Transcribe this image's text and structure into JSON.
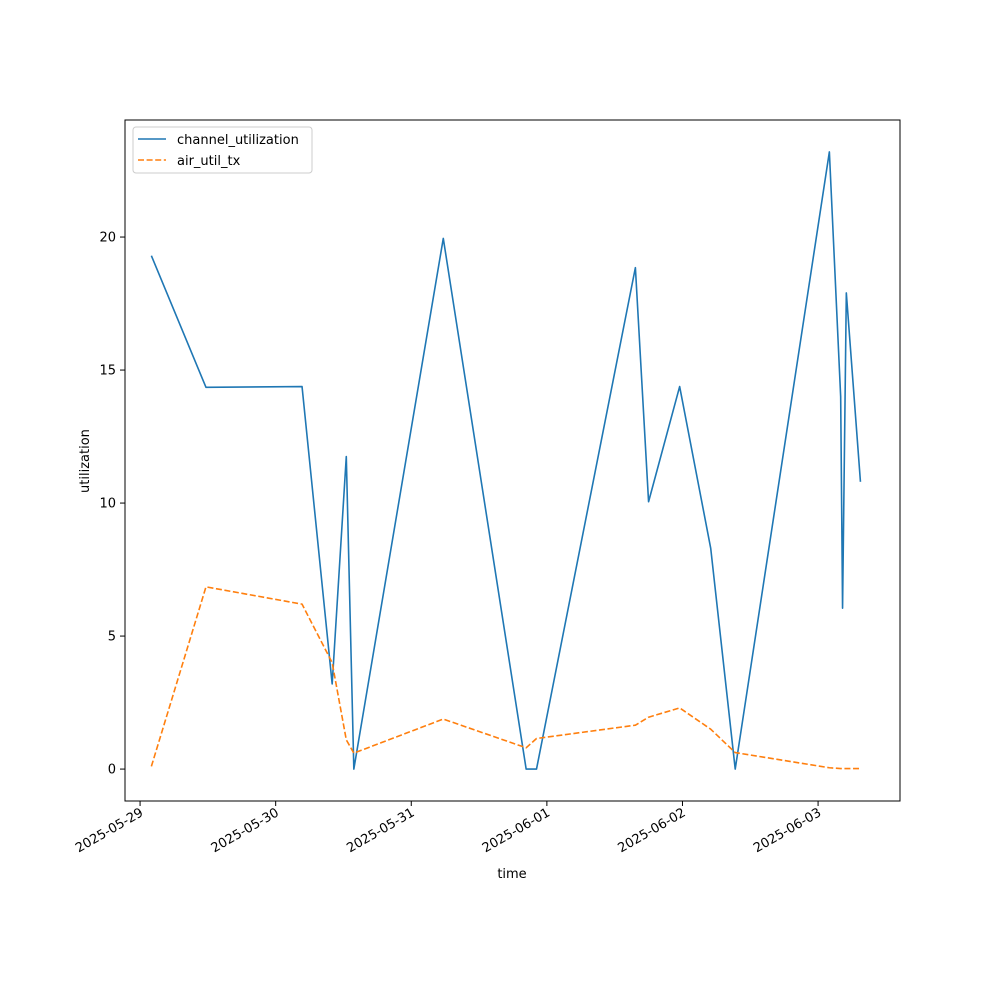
{
  "chart_data": {
    "type": "line",
    "title": "",
    "xlabel": "time",
    "ylabel": "utilization",
    "x_ticks": [
      "2025-05-29",
      "2025-05-30",
      "2025-05-31",
      "2025-06-01",
      "2025-06-02",
      "2025-06-03"
    ],
    "y_ticks": [
      0,
      5,
      10,
      15,
      20
    ],
    "xlim": [
      "2025-05-28T21:20",
      "2025-06-03T14:30"
    ],
    "ylim": [
      -1.2,
      24.4
    ],
    "grid": false,
    "legend": "top-left",
    "series": [
      {
        "name": "channel_utilization",
        "color": "#1f77b4",
        "linestyle": "solid",
        "points": [
          [
            "2025-05-29T02:00",
            19.3
          ],
          [
            "2025-05-29T11:40",
            14.35
          ],
          [
            "2025-05-30T04:40",
            14.38
          ],
          [
            "2025-05-30T10:00",
            3.2
          ],
          [
            "2025-05-30T12:30",
            11.75
          ],
          [
            "2025-05-30T13:50",
            0.0
          ],
          [
            "2025-05-31T05:40",
            19.95
          ],
          [
            "2025-05-31T20:20",
            0.0
          ],
          [
            "2025-05-31T22:10",
            0.0
          ],
          [
            "2025-06-01T15:40",
            18.85
          ],
          [
            "2025-06-01T18:00",
            10.05
          ],
          [
            "2025-06-01T23:30",
            14.38
          ],
          [
            "2025-06-02T05:00",
            8.3
          ],
          [
            "2025-06-02T09:20",
            0.0
          ],
          [
            "2025-06-03T02:00",
            23.2
          ],
          [
            "2025-06-03T04:00",
            14.0
          ],
          [
            "2025-06-03T04:20",
            6.05
          ],
          [
            "2025-06-03T05:00",
            17.9
          ],
          [
            "2025-06-03T07:30",
            10.8
          ]
        ]
      },
      {
        "name": "air_util_tx",
        "color": "#ff7f0e",
        "linestyle": "dashed",
        "points": [
          [
            "2025-05-29T02:00",
            0.1
          ],
          [
            "2025-05-29T11:40",
            6.85
          ],
          [
            "2025-05-30T04:40",
            6.2
          ],
          [
            "2025-05-30T10:00",
            4.0
          ],
          [
            "2025-05-30T12:30",
            1.1
          ],
          [
            "2025-05-30T13:50",
            0.6
          ],
          [
            "2025-05-31T05:40",
            1.88
          ],
          [
            "2025-05-31T20:20",
            0.8
          ],
          [
            "2025-05-31T22:10",
            1.15
          ],
          [
            "2025-06-01T15:40",
            1.65
          ],
          [
            "2025-06-01T18:00",
            1.95
          ],
          [
            "2025-06-01T23:30",
            2.3
          ],
          [
            "2025-06-02T05:00",
            1.5
          ],
          [
            "2025-06-02T09:20",
            0.62
          ],
          [
            "2025-06-03T02:00",
            0.05
          ],
          [
            "2025-06-03T04:00",
            0.02
          ],
          [
            "2025-06-03T07:30",
            0.02
          ]
        ]
      }
    ]
  }
}
